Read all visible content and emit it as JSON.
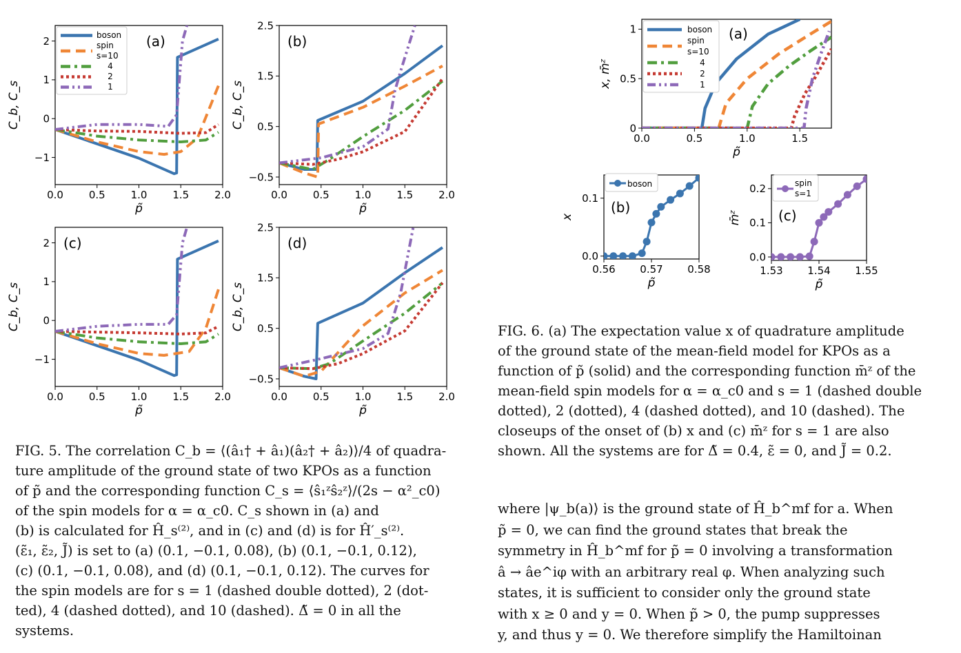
{
  "colors": {
    "boson": "#3b75af",
    "s10": "#ef8636",
    "s4": "#519e3e",
    "s2": "#c53a32",
    "s1": "#8d69b8"
  },
  "fig5": {
    "panels": [
      {
        "label": "(a)",
        "ylabel": "C_b, C_s",
        "xlabel": "p̃",
        "xlim": [
          0,
          2.0
        ],
        "ylim": [
          -1.7,
          2.4
        ],
        "yticks": [
          -1,
          0,
          1,
          2
        ],
        "xticks": [
          0.0,
          0.5,
          1.0,
          1.5,
          2.0
        ],
        "legend": {
          "entries": [
            "boson",
            "spin s=10",
            "4",
            "2",
            "1"
          ],
          "placement": "top-left"
        }
      },
      {
        "label": "(b)",
        "ylabel": "C_b, C_s",
        "xlabel": "p̃",
        "xlim": [
          0,
          2.0
        ],
        "ylim": [
          -0.65,
          2.5
        ],
        "yticks": [
          -0.5,
          0.5,
          1.5,
          2.5
        ],
        "xticks": [
          0.0,
          0.5,
          1.0,
          1.5,
          2.0
        ]
      },
      {
        "label": "(c)",
        "ylabel": "C_b, C_s",
        "xlabel": "p̃",
        "xlim": [
          0,
          2.0
        ],
        "ylim": [
          -1.7,
          2.4
        ],
        "yticks": [
          -1,
          0,
          1,
          2
        ],
        "xticks": [
          0.0,
          0.5,
          1.0,
          1.5,
          2.0
        ]
      },
      {
        "label": "(d)",
        "ylabel": "C_b, C_s",
        "xlabel": "p̃",
        "xlim": [
          0,
          2.0
        ],
        "ylim": [
          -0.65,
          2.5
        ],
        "yticks": [
          -0.5,
          0.5,
          1.5,
          2.5
        ],
        "xticks": [
          0.0,
          0.5,
          1.0,
          1.5,
          2.0
        ]
      }
    ],
    "caption_lines": [
      "FIG. 5. The correlation C_b = ⟨(â₁† + â₁)(â₂† + â₂)⟩/4 of quadra-",
      "ture amplitude of the ground state of two KPOs as a function",
      "of p̃ and the corresponding function C_s = ⟨ŝ₁ᶻŝ₂ᶻ⟩/(2s − α²_c0)",
      "of the spin models for α = α_c0.  C_s shown in (a) and",
      "(b) is calculated for Ĥ_s⁽²⁾, and in (c) and (d) is for Ĥ′_s⁽²⁾.",
      "(ε̃₁, ε̃₂, J̃) is set to (a) (0.1, −0.1, 0.08), (b) (0.1, −0.1, 0.12),",
      "(c) (0.1, −0.1, 0.08), and (d) (0.1, −0.1, 0.12). The curves for",
      "the spin models are for s = 1 (dashed double dotted), 2 (dot-",
      "ted), 4 (dashed dotted), and 10 (dashed).  Δ̃ = 0 in all the",
      "systems."
    ]
  },
  "fig6": {
    "panel_a": {
      "label": "(a)",
      "ylabel": "x, m̄ᶻ",
      "xlabel": "p̃",
      "xlim": [
        0,
        1.8
      ],
      "ylim": [
        0,
        1.1
      ],
      "xticks": [
        0.0,
        0.5,
        1.0,
        1.5
      ],
      "yticks": [
        0.0,
        0.5,
        1.0
      ],
      "legend": {
        "entries": [
          "boson",
          "spin s=10",
          "4",
          "2",
          "1"
        ],
        "placement": "top-left"
      }
    },
    "panel_b": {
      "label": "(b)",
      "ylabel": "x",
      "xlabel": "p̃",
      "xlim": [
        0.56,
        0.58
      ],
      "ylim": [
        -0.005,
        0.14
      ],
      "xticks": [
        0.56,
        0.57,
        0.58
      ],
      "yticks": [
        0.0,
        0.1
      ],
      "legend": [
        "boson"
      ]
    },
    "panel_c": {
      "label": "(c)",
      "ylabel": "m̄ᶻ",
      "xlabel": "p̃",
      "xlim": [
        1.53,
        1.55
      ],
      "ylim": [
        -0.01,
        0.24
      ],
      "xticks": [
        1.53,
        1.54,
        1.55
      ],
      "yticks": [
        0.0,
        0.1,
        0.2
      ],
      "legend": [
        "spin s=1"
      ]
    },
    "caption_lines": [
      "FIG. 6. (a) The expectation value x of quadrature amplitude",
      "of the ground state of the mean-field model for KPOs as a",
      "function of p̃ (solid) and the corresponding function m̄ᶻ of the",
      "mean-field spin models for α = α_c0 and s = 1 (dashed double",
      "dotted), 2 (dotted), 4 (dashed dotted), and 10 (dashed). The",
      "closeups of the onset of (b) x and (c) m̄ᶻ for s = 1 are also",
      "shown. All the systems are for Δ̃ = 0.4, ε̃ = 0, and J̃ = 0.2."
    ]
  },
  "body_lines": [
    "where |ψ_b(a)⟩ is the ground state of Ĥ_b^mf for a.  When",
    "p̃ = 0, we can find the ground states that break the",
    "symmetry in Ĥ_b^mf for p̃ = 0 involving a transformation",
    "â → âe^iφ with an arbitrary real φ. When analyzing such",
    "states, it is sufficient to consider only the ground state",
    "with x ≥ 0 and y = 0. When p̃ > 0, the pump suppresses",
    "y, and thus y = 0. We therefore simplify the Hamiltoinan"
  ],
  "chart_data": [
    {
      "type": "line",
      "title": "",
      "panel": "(a)",
      "xlabel": "p̃",
      "ylabel": "Cb, Cs",
      "xlim": [
        0,
        2.0
      ],
      "ylim": [
        -1.7,
        2.4
      ],
      "series": [
        {
          "name": "boson",
          "x": [
            0,
            0.5,
            1.0,
            1.42,
            1.45,
            1.46,
            1.95
          ],
          "y": [
            -0.28,
            -0.65,
            -1.02,
            -1.42,
            -1.4,
            1.58,
            2.05
          ]
        },
        {
          "name": "spin s=10",
          "x": [
            0,
            0.5,
            1.0,
            1.3,
            1.5,
            1.7,
            1.95
          ],
          "y": [
            -0.28,
            -0.6,
            -0.85,
            -0.92,
            -0.85,
            -0.5,
            0.85
          ]
        },
        {
          "name": "4",
          "x": [
            0,
            0.5,
            1.0,
            1.5,
            1.8,
            1.95
          ],
          "y": [
            -0.28,
            -0.45,
            -0.55,
            -0.6,
            -0.55,
            -0.35
          ]
        },
        {
          "name": "2",
          "x": [
            0,
            0.5,
            1.0,
            1.5,
            1.8,
            1.95
          ],
          "y": [
            -0.28,
            -0.32,
            -0.33,
            -0.38,
            -0.36,
            -0.15
          ]
        },
        {
          "name": "1",
          "x": [
            0,
            0.5,
            1.0,
            1.35,
            1.45,
            1.52,
            1.6
          ],
          "y": [
            -0.28,
            -0.15,
            -0.15,
            -0.2,
            0.1,
            2.0,
            2.6
          ]
        }
      ]
    },
    {
      "type": "line",
      "title": "",
      "panel": "(b)",
      "xlabel": "p̃",
      "ylabel": "Cb, Cs",
      "xlim": [
        0,
        2.0
      ],
      "ylim": [
        -0.65,
        2.5
      ],
      "series": [
        {
          "name": "boson",
          "x": [
            0,
            0.3,
            0.45,
            0.46,
            1.0,
            1.5,
            1.95
          ],
          "y": [
            -0.22,
            -0.35,
            -0.35,
            0.62,
            1.0,
            1.55,
            2.1
          ]
        },
        {
          "name": "spin s=10",
          "x": [
            0,
            0.3,
            0.46,
            0.47,
            1.0,
            1.5,
            1.95
          ],
          "y": [
            -0.22,
            -0.42,
            -0.5,
            0.55,
            0.88,
            1.3,
            1.7
          ]
        },
        {
          "name": "4",
          "x": [
            0,
            0.4,
            0.6,
            1.0,
            1.5,
            1.95
          ],
          "y": [
            -0.22,
            -0.35,
            -0.15,
            0.3,
            0.82,
            1.4
          ]
        },
        {
          "name": "2",
          "x": [
            0,
            0.4,
            0.7,
            1.0,
            1.5,
            1.95
          ],
          "y": [
            -0.22,
            -0.25,
            -0.15,
            0.0,
            0.4,
            1.45
          ]
        },
        {
          "name": "1",
          "x": [
            0,
            0.5,
            1.0,
            1.3,
            1.38,
            1.45,
            1.62
          ],
          "y": [
            -0.22,
            -0.12,
            0.1,
            0.45,
            1.2,
            1.6,
            2.5
          ]
        }
      ]
    },
    {
      "type": "line",
      "title": "",
      "panel": "(c)",
      "xlabel": "p̃",
      "ylabel": "Cb, Cs",
      "xlim": [
        0,
        2.0
      ],
      "ylim": [
        -1.7,
        2.4
      ],
      "series": [
        {
          "name": "boson",
          "x": [
            0,
            0.5,
            1.0,
            1.42,
            1.45,
            1.46,
            1.95
          ],
          "y": [
            -0.28,
            -0.65,
            -1.02,
            -1.42,
            -1.4,
            1.58,
            2.05
          ]
        },
        {
          "name": "spin s=10",
          "x": [
            0,
            0.5,
            1.0,
            1.3,
            1.6,
            1.8,
            1.95
          ],
          "y": [
            -0.28,
            -0.6,
            -0.85,
            -0.9,
            -0.8,
            -0.2,
            0.8
          ]
        },
        {
          "name": "4",
          "x": [
            0,
            0.5,
            1.0,
            1.5,
            1.8,
            1.95
          ],
          "y": [
            -0.28,
            -0.45,
            -0.55,
            -0.6,
            -0.55,
            -0.35
          ]
        },
        {
          "name": "2",
          "x": [
            0,
            0.5,
            1.0,
            1.5,
            1.8,
            1.95
          ],
          "y": [
            -0.28,
            -0.3,
            -0.32,
            -0.35,
            -0.32,
            -0.15
          ]
        },
        {
          "name": "1",
          "x": [
            0,
            0.5,
            1.0,
            1.35,
            1.45,
            1.52,
            1.6
          ],
          "y": [
            -0.28,
            -0.15,
            -0.1,
            -0.1,
            0.15,
            2.0,
            2.6
          ]
        }
      ]
    },
    {
      "type": "line",
      "title": "",
      "panel": "(d)",
      "xlabel": "p̃",
      "ylabel": "Cb, Cs",
      "xlim": [
        0,
        2.0
      ],
      "ylim": [
        -0.65,
        2.5
      ],
      "series": [
        {
          "name": "boson",
          "x": [
            0,
            0.3,
            0.44,
            0.46,
            1.0,
            1.5,
            1.95
          ],
          "y": [
            -0.28,
            -0.45,
            -0.5,
            0.6,
            1.0,
            1.6,
            2.1
          ]
        },
        {
          "name": "spin s=10",
          "x": [
            0,
            0.3,
            0.5,
            0.8,
            1.0,
            1.5,
            1.95
          ],
          "y": [
            -0.28,
            -0.45,
            -0.35,
            0.2,
            0.55,
            1.2,
            1.65
          ]
        },
        {
          "name": "4",
          "x": [
            0,
            0.4,
            0.6,
            1.0,
            1.5,
            1.95
          ],
          "y": [
            -0.28,
            -0.3,
            -0.2,
            0.25,
            0.8,
            1.4
          ]
        },
        {
          "name": "2",
          "x": [
            0,
            0.4,
            0.7,
            1.0,
            1.5,
            1.95
          ],
          "y": [
            -0.28,
            -0.3,
            -0.2,
            0.0,
            0.45,
            1.4
          ]
        },
        {
          "name": "1",
          "x": [
            0,
            0.5,
            1.0,
            1.3,
            1.45,
            1.6
          ],
          "y": [
            -0.28,
            -0.1,
            0.1,
            0.4,
            1.2,
            2.5
          ]
        }
      ]
    },
    {
      "type": "line",
      "title": "",
      "panel": "fig6 (a)",
      "xlabel": "p̃",
      "ylabel": "x, m̄ᶻ",
      "xlim": [
        0,
        1.8
      ],
      "ylim": [
        0,
        1.1
      ],
      "series": [
        {
          "name": "boson",
          "x": [
            0,
            0.57,
            0.6,
            0.7,
            0.9,
            1.2,
            1.5
          ],
          "y": [
            0,
            0,
            0.2,
            0.45,
            0.7,
            0.95,
            1.1
          ]
        },
        {
          "name": "spin s=10",
          "x": [
            0,
            0.73,
            0.8,
            1.0,
            1.3,
            1.6,
            1.8
          ],
          "y": [
            0,
            0,
            0.25,
            0.5,
            0.75,
            0.95,
            1.08
          ]
        },
        {
          "name": "4",
          "x": [
            0,
            1.0,
            1.05,
            1.2,
            1.4,
            1.6,
            1.8
          ],
          "y": [
            0,
            0,
            0.22,
            0.45,
            0.63,
            0.78,
            0.92
          ]
        },
        {
          "name": "2",
          "x": [
            0,
            1.42,
            1.45,
            1.55,
            1.65,
            1.8
          ],
          "y": [
            0,
            0,
            0.12,
            0.35,
            0.52,
            0.8
          ]
        },
        {
          "name": "1",
          "x": [
            0,
            1.54,
            1.56,
            1.62,
            1.7,
            1.78
          ],
          "y": [
            0,
            0,
            0.2,
            0.5,
            0.75,
            0.98
          ]
        }
      ]
    },
    {
      "type": "line",
      "title": "",
      "panel": "fig6 (b)",
      "xlabel": "p̃",
      "ylabel": "x",
      "xlim": [
        0.56,
        0.58
      ],
      "ylim": [
        -0.005,
        0.14
      ],
      "series": [
        {
          "name": "boson",
          "x": [
            0.56,
            0.562,
            0.564,
            0.566,
            0.568,
            0.569,
            0.57,
            0.571,
            0.572,
            0.574,
            0.576,
            0.578,
            0.58
          ],
          "y": [
            0,
            0,
            0,
            0,
            0.005,
            0.025,
            0.058,
            0.073,
            0.085,
            0.097,
            0.108,
            0.121,
            0.135
          ]
        }
      ]
    },
    {
      "type": "line",
      "title": "",
      "panel": "fig6 (c)",
      "xlabel": "p̃",
      "ylabel": "m̄ᶻ",
      "xlim": [
        1.53,
        1.55
      ],
      "ylim": [
        -0.01,
        0.24
      ],
      "series": [
        {
          "name": "spin s=1",
          "x": [
            1.53,
            1.532,
            1.534,
            1.536,
            1.538,
            1.539,
            1.54,
            1.541,
            1.542,
            1.544,
            1.546,
            1.548,
            1.55
          ],
          "y": [
            0,
            0,
            0,
            0,
            0.002,
            0.045,
            0.1,
            0.117,
            0.132,
            0.155,
            0.182,
            0.207,
            0.228
          ]
        }
      ]
    }
  ]
}
